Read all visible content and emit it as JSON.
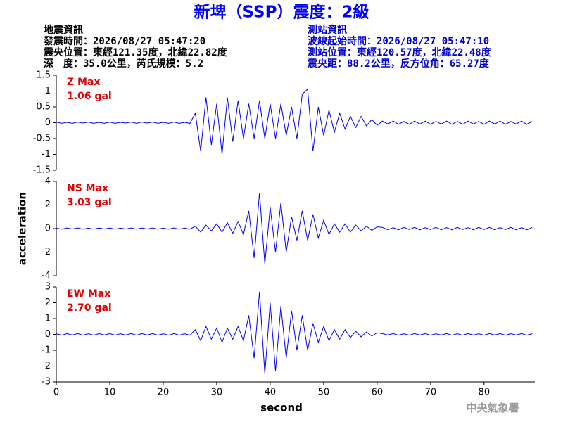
{
  "header": {
    "title": "新埤（SSP）震度：2級",
    "quake_info": [
      "地震資訊",
      "發震時間：2026/08/27 05:47:20",
      "震央位置：東經121.35度，北緯22.82度",
      "深　度：35.0公里，芮氏規模：5.2"
    ],
    "station_info": [
      "測站資訊",
      "波線起始時間：2026/08/27 05:47:10",
      "測站位置：東經120.57度，北緯22.48度",
      "震央距：88.2公里，反方位角：65.27度"
    ],
    "footer": "中央氣象署"
  },
  "chart_data": [
    {
      "type": "line",
      "title": "Z Max",
      "subtitle": "1.06 gal",
      "color": "#0000ff",
      "xlim": [
        0,
        89.5
      ],
      "ylim": [
        -1.5,
        1.5
      ],
      "yticks": [
        1.5,
        1,
        0.5,
        0,
        -0.5,
        -1,
        -1.5
      ],
      "x": [
        0,
        1,
        2,
        3,
        4,
        5,
        6,
        7,
        8,
        9,
        10,
        11,
        12,
        13,
        14,
        15,
        16,
        17,
        18,
        19,
        20,
        21,
        22,
        23,
        24,
        25,
        26,
        27,
        28,
        29,
        30,
        31,
        32,
        33,
        34,
        35,
        36,
        37,
        38,
        39,
        40,
        41,
        42,
        43,
        44,
        45,
        46,
        47,
        48,
        49,
        50,
        51,
        52,
        53,
        54,
        55,
        56,
        57,
        58,
        59,
        60,
        61,
        62,
        63,
        64,
        65,
        66,
        67,
        68,
        69,
        70,
        71,
        72,
        73,
        74,
        75,
        76,
        77,
        78,
        79,
        80,
        81,
        82,
        83,
        84,
        85,
        86,
        87,
        88,
        89
      ],
      "values": [
        0.02,
        -0.02,
        0.01,
        -0.02,
        0.02,
        -0.01,
        0.02,
        -0.02,
        0.01,
        -0.02,
        0.02,
        -0.02,
        0.01,
        -0.01,
        0.02,
        -0.02,
        0.02,
        -0.01,
        0.02,
        -0.02,
        0.01,
        -0.02,
        0.02,
        -0.02,
        0.01,
        -0.02,
        0.3,
        -0.9,
        0.8,
        -0.7,
        0.6,
        -1.0,
        0.8,
        -0.6,
        0.7,
        -0.5,
        0.6,
        -0.5,
        0.7,
        -0.5,
        0.6,
        -0.5,
        0.6,
        -0.4,
        0.5,
        -0.5,
        0.9,
        1.06,
        -0.9,
        0.5,
        -0.4,
        0.4,
        -0.3,
        0.3,
        -0.2,
        0.2,
        -0.15,
        0.2,
        -0.1,
        0.1,
        -0.08,
        0.05,
        -0.04,
        0.05,
        -0.05,
        0.04,
        -0.05,
        0.05,
        -0.04,
        0.05,
        -0.05,
        0.04,
        -0.04,
        0.05,
        -0.05,
        0.04,
        -0.05,
        0.05,
        -0.04,
        0.04,
        -0.05,
        0.05,
        -0.04,
        0.05,
        -0.05,
        0.04,
        -0.04,
        0.05,
        -0.05,
        0.04
      ]
    },
    {
      "type": "line",
      "title": "NS Max",
      "subtitle": "3.03 gal",
      "color": "#0000ff",
      "ylabel": "acceleration",
      "xlim": [
        0,
        89.5
      ],
      "ylim": [
        -4,
        4
      ],
      "yticks": [
        4,
        2,
        0,
        -2,
        -4
      ],
      "x": [
        0,
        1,
        2,
        3,
        4,
        5,
        6,
        7,
        8,
        9,
        10,
        11,
        12,
        13,
        14,
        15,
        16,
        17,
        18,
        19,
        20,
        21,
        22,
        23,
        24,
        25,
        26,
        27,
        28,
        29,
        30,
        31,
        32,
        33,
        34,
        35,
        36,
        37,
        38,
        39,
        40,
        41,
        42,
        43,
        44,
        45,
        46,
        47,
        48,
        49,
        50,
        51,
        52,
        53,
        54,
        55,
        56,
        57,
        58,
        59,
        60,
        61,
        62,
        63,
        64,
        65,
        66,
        67,
        68,
        69,
        70,
        71,
        72,
        73,
        74,
        75,
        76,
        77,
        78,
        79,
        80,
        81,
        82,
        83,
        84,
        85,
        86,
        87,
        88,
        89
      ],
      "values": [
        0.04,
        -0.05,
        0.05,
        -0.04,
        0.05,
        -0.05,
        0.04,
        -0.05,
        0.05,
        -0.04,
        0.05,
        -0.05,
        0.04,
        -0.04,
        0.05,
        -0.05,
        0.05,
        -0.04,
        0.05,
        -0.05,
        0.04,
        -0.05,
        0.05,
        -0.05,
        0.04,
        -0.05,
        0.2,
        -0.3,
        0.3,
        -0.2,
        0.4,
        -0.3,
        0.5,
        -0.4,
        0.6,
        -0.5,
        1.5,
        -2.5,
        3.03,
        -3.0,
        1.8,
        -2.0,
        2.2,
        -2.0,
        1.0,
        -1.0,
        1.5,
        -1.0,
        1.2,
        -0.8,
        0.7,
        -0.5,
        0.4,
        -0.3,
        0.4,
        -0.3,
        0.3,
        -0.2,
        0.2,
        -0.15,
        0.15,
        0.1,
        -0.1,
        0.08,
        -0.1,
        0.1,
        -0.08,
        0.1,
        -0.1,
        0.08,
        -0.08,
        0.1,
        -0.1,
        0.08,
        -0.1,
        0.1,
        -0.08,
        0.08,
        -0.1,
        0.1,
        -0.08,
        0.1,
        -0.1,
        0.08,
        -0.08,
        0.1,
        -0.1,
        0.08,
        -0.1,
        0.1
      ]
    },
    {
      "type": "line",
      "title": "EW Max",
      "subtitle": "2.70 gal",
      "color": "#0000ff",
      "xlabel": "second",
      "xlim": [
        0,
        89.5
      ],
      "xticks": [
        0,
        10,
        20,
        30,
        40,
        50,
        60,
        70,
        80
      ],
      "ylim": [
        -3,
        3
      ],
      "yticks": [
        3,
        2,
        1,
        0,
        -1,
        -2,
        -3
      ],
      "x": [
        0,
        1,
        2,
        3,
        4,
        5,
        6,
        7,
        8,
        9,
        10,
        11,
        12,
        13,
        14,
        15,
        16,
        17,
        18,
        19,
        20,
        21,
        22,
        23,
        24,
        25,
        26,
        27,
        28,
        29,
        30,
        31,
        32,
        33,
        34,
        35,
        36,
        37,
        38,
        39,
        40,
        41,
        42,
        43,
        44,
        45,
        46,
        47,
        48,
        49,
        50,
        51,
        52,
        53,
        54,
        55,
        56,
        57,
        58,
        59,
        60,
        61,
        62,
        63,
        64,
        65,
        66,
        67,
        68,
        69,
        70,
        71,
        72,
        73,
        74,
        75,
        76,
        77,
        78,
        79,
        80,
        81,
        82,
        83,
        84,
        85,
        86,
        87,
        88,
        89
      ],
      "values": [
        0.04,
        -0.05,
        0.05,
        -0.04,
        0.05,
        -0.05,
        0.04,
        -0.05,
        0.05,
        -0.04,
        0.05,
        -0.05,
        0.04,
        -0.04,
        0.05,
        -0.05,
        0.05,
        -0.04,
        0.05,
        -0.05,
        0.04,
        -0.05,
        0.05,
        -0.05,
        0.04,
        -0.05,
        0.3,
        -0.4,
        0.5,
        -0.3,
        0.4,
        -0.5,
        0.4,
        -0.3,
        0.5,
        -0.4,
        1.2,
        -1.5,
        2.7,
        -2.5,
        2.0,
        -2.3,
        1.8,
        -1.5,
        1.5,
        -1.0,
        1.2,
        -1.0,
        0.7,
        -0.5,
        0.5,
        -0.4,
        0.3,
        -0.3,
        0.3,
        -0.2,
        0.2,
        -0.15,
        0.15,
        -0.1,
        0.1,
        0.05,
        -0.04,
        0.05,
        -0.05,
        0.04,
        -0.05,
        0.05,
        -0.04,
        0.05,
        -0.05,
        0.04,
        -0.04,
        0.05,
        -0.05,
        0.04,
        -0.05,
        0.05,
        -0.04,
        0.04,
        -0.05,
        0.05,
        -0.04,
        0.05,
        -0.05,
        0.04,
        -0.04,
        0.05,
        -0.05,
        0.04
      ]
    }
  ]
}
